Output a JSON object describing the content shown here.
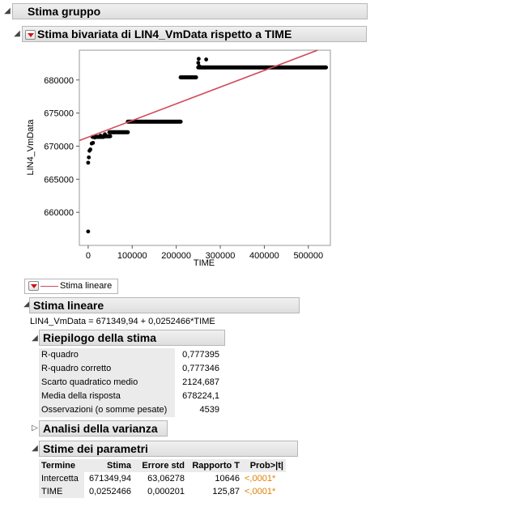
{
  "group": {
    "title": "Stima gruppo"
  },
  "bivariate": {
    "title": "Stima bivariata di LIN4_VmData rispetto a TIME"
  },
  "chart_data": {
    "type": "scatter",
    "xlabel": "TIME",
    "ylabel": "LIN4_VmData",
    "xlim": [
      -20000,
      550000
    ],
    "ylim": [
      655000,
      684500
    ],
    "x_ticks": [
      0,
      100000,
      200000,
      300000,
      400000,
      500000
    ],
    "x_tick_labels": [
      "0",
      "100000",
      "200000",
      "300000",
      "400000",
      "500000"
    ],
    "y_ticks": [
      660000,
      665000,
      670000,
      675000,
      680000
    ],
    "y_tick_labels": [
      "660000",
      "665000",
      "670000",
      "675000",
      "680000"
    ],
    "points": [
      [
        0,
        657100
      ],
      [
        0,
        667500
      ],
      [
        1500,
        668300
      ],
      [
        3000,
        669300
      ],
      [
        5000,
        669500
      ],
      [
        8000,
        670400
      ],
      [
        11000,
        670500
      ],
      [
        15000,
        671300
      ],
      [
        25000,
        671400
      ],
      [
        28000,
        671600
      ],
      [
        38000,
        671800
      ],
      [
        48000,
        672100
      ],
      [
        58000,
        672100
      ],
      [
        70000,
        672100
      ],
      [
        80000,
        672100
      ],
      [
        95000,
        673700
      ],
      [
        250000,
        682600
      ],
      [
        251000,
        683200
      ],
      [
        252000,
        682100
      ],
      [
        268000,
        683100
      ]
    ],
    "segments": [
      {
        "x0": 10000,
        "x1": 35000,
        "y": 671400
      },
      {
        "x0": 35000,
        "x1": 50000,
        "y": 671500
      },
      {
        "x0": 50000,
        "x1": 90000,
        "y": 672100
      },
      {
        "x0": 90000,
        "x1": 210000,
        "y": 673700
      },
      {
        "x0": 210000,
        "x1": 245000,
        "y": 680400
      },
      {
        "x0": 250000,
        "x1": 540000,
        "y": 681900
      }
    ],
    "fit": {
      "intercept": 671349.94,
      "slope": 0.0252466,
      "color": "#d14a5b"
    },
    "point_color": "#000000"
  },
  "legend": {
    "label": "Stima lineare"
  },
  "linear_fit": {
    "title": "Stima lineare",
    "equation": "LIN4_VmData = 671349,94 + 0,0252466*TIME"
  },
  "summary": {
    "title": "Riepilogo della stima",
    "rows": [
      {
        "label": "R-quadro",
        "value": "0,777395"
      },
      {
        "label": "R-quadro corretto",
        "value": "0,777346"
      },
      {
        "label": "Scarto quadratico medio",
        "value": "2124,687"
      },
      {
        "label": "Media della risposta",
        "value": "678224,1"
      },
      {
        "label": "Osservazioni (o somme pesate)",
        "value": "4539"
      }
    ]
  },
  "anova": {
    "title": "Analisi della varianza"
  },
  "params": {
    "title": "Stime dei parametri",
    "headers": [
      "Termine",
      "Stima",
      "Errore std",
      "Rapporto T",
      "Prob>|t|"
    ],
    "rows": [
      {
        "term": "Intercetta",
        "estimate": "671349,94",
        "stderr": "63,06278",
        "t": "10646",
        "p": "<,0001*"
      },
      {
        "term": "TIME",
        "estimate": "0,0252466",
        "stderr": "0,000201",
        "t": "125,87",
        "p": "<,0001*"
      }
    ],
    "significant_color": "#e08000"
  }
}
